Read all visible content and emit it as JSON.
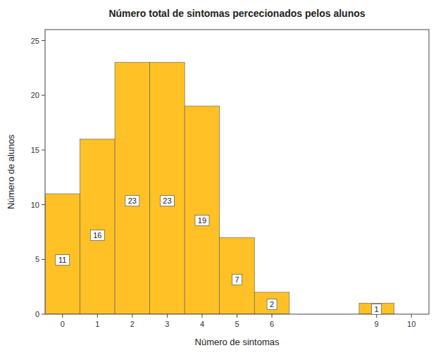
{
  "chart_data": {
    "type": "bar",
    "title": "Número total de sintomas percecionados pelos alunos",
    "x_label": "Número de sintomas",
    "y_label": "Número de alunos",
    "x": [
      0,
      1,
      2,
      3,
      4,
      5,
      6,
      9
    ],
    "values": [
      11,
      16,
      23,
      23,
      19,
      7,
      2,
      1
    ],
    "color": "#FFC125",
    "xlim": [
      -0.5,
      10.5
    ],
    "xticks": [
      0,
      1,
      2,
      3,
      4,
      5,
      6,
      9,
      10
    ],
    "ylim": [
      0,
      26
    ],
    "yticks": [
      0,
      5,
      10,
      15,
      20,
      25
    ],
    "grid": false,
    "data_labels": true
  }
}
